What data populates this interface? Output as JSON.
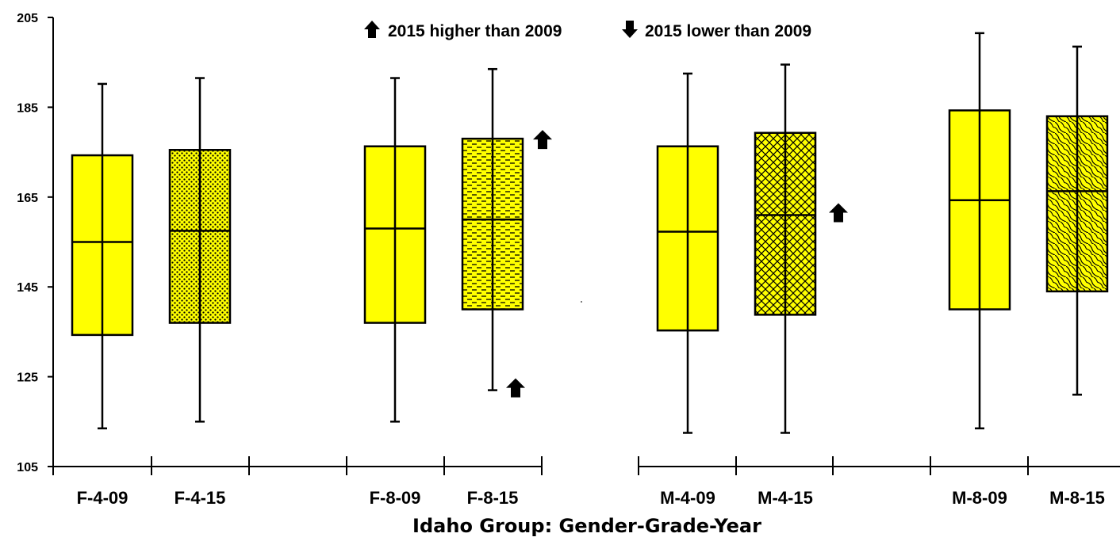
{
  "chart_data": {
    "type": "boxplot",
    "title": "",
    "xlabel": "Idaho Group: Gender-Grade-Year",
    "ylabel": "",
    "ylim": [
      105,
      205
    ],
    "y_ticks": [
      105,
      125,
      145,
      165,
      185,
      205
    ],
    "grid": false,
    "legend": {
      "placement": "top-center",
      "entries": [
        {
          "icon": "up-arrow",
          "label": "2015 higher than 2009"
        },
        {
          "icon": "down-arrow",
          "label": "2015 lower than 2009"
        }
      ]
    },
    "colors": {
      "box_fill": "#ffff00",
      "stroke": "#000000"
    },
    "boxes": [
      {
        "label": "F-4-09",
        "min": 113.5,
        "q1": 134.3,
        "median": 155,
        "q3": 174.3,
        "max": 190.2,
        "pattern": "solid",
        "marks": []
      },
      {
        "label": "F-4-15",
        "min": 115,
        "q1": 137,
        "median": 157.5,
        "q3": 175.5,
        "max": 191.5,
        "pattern": "dots",
        "marks": []
      },
      {
        "label": "F-8-09",
        "min": 115,
        "q1": 137,
        "median": 158,
        "q3": 176.3,
        "max": 191.5,
        "pattern": "solid",
        "marks": []
      },
      {
        "label": "F-8-15",
        "min": 122,
        "q1": 140,
        "median": 160,
        "q3": 178,
        "max": 193.5,
        "pattern": "dashes",
        "marks": [
          {
            "type": "up-arrow",
            "stat": "q3"
          },
          {
            "type": "up-arrow",
            "stat": "min"
          }
        ]
      },
      {
        "label": "M-4-09",
        "min": 112.5,
        "q1": 135.3,
        "median": 157.3,
        "q3": 176.3,
        "max": 192.5,
        "pattern": "solid",
        "marks": []
      },
      {
        "label": "M-4-15",
        "min": 112.5,
        "q1": 138.8,
        "median": 161,
        "q3": 179.3,
        "max": 194.5,
        "pattern": "crosshatch",
        "marks": [
          {
            "type": "up-arrow",
            "stat": "median"
          }
        ]
      },
      {
        "label": "M-8-09",
        "min": 113.5,
        "q1": 140,
        "median": 164.3,
        "q3": 184.3,
        "max": 201.5,
        "pattern": "solid",
        "marks": []
      },
      {
        "label": "M-8-15",
        "min": 121,
        "q1": 144,
        "median": 166.3,
        "q3": 183,
        "max": 198.5,
        "pattern": "waves",
        "marks": []
      }
    ]
  }
}
